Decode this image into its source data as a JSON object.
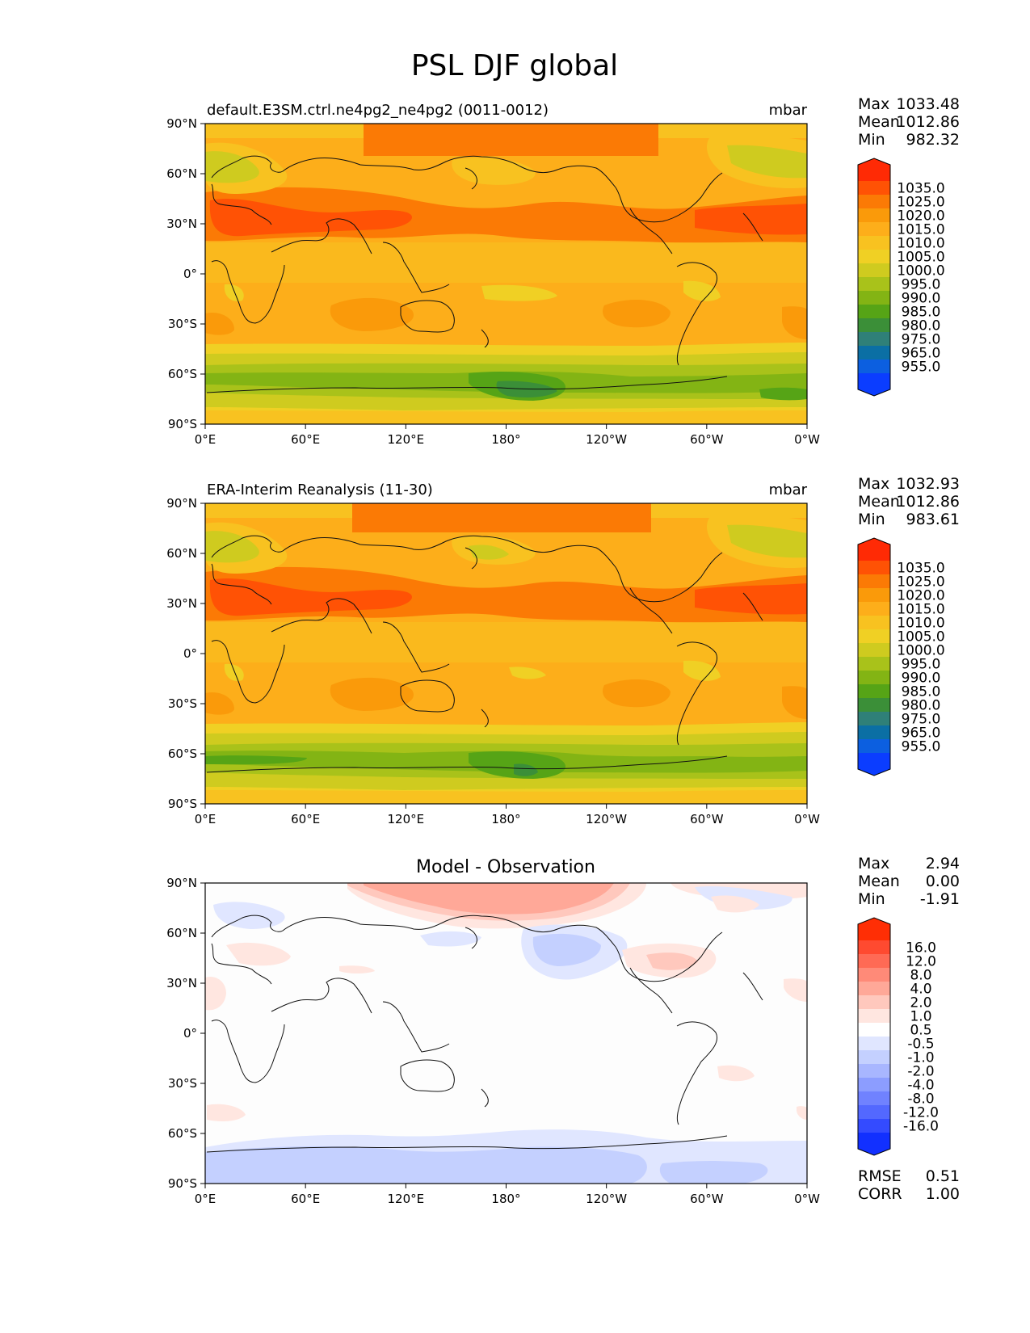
{
  "figure": {
    "title": "PSL DJF global",
    "panels": [
      {
        "key": "test",
        "title_left": "default.E3SM.ctrl.ne4pg2_ne4pg2 (0011-0012)",
        "title_center": "",
        "units": "mbar",
        "stats": [
          {
            "label": "Max",
            "value": "1033.48"
          },
          {
            "label": "Mean",
            "value": "1012.86"
          },
          {
            "label": "Min",
            "value": "982.32"
          }
        ],
        "extra_stats": []
      },
      {
        "key": "ref",
        "title_left": "ERA-Interim Reanalysis (11-30)",
        "title_center": "",
        "units": "mbar",
        "stats": [
          {
            "label": "Max",
            "value": "1032.93"
          },
          {
            "label": "Mean",
            "value": "1012.86"
          },
          {
            "label": "Min",
            "value": "983.61"
          }
        ],
        "extra_stats": []
      },
      {
        "key": "diff",
        "title_left": "",
        "title_center": "Model - Observation",
        "units": "",
        "stats": [
          {
            "label": "Max",
            "value": "2.94"
          },
          {
            "label": "Mean",
            "value": "0.00"
          },
          {
            "label": "Min",
            "value": "-1.91"
          }
        ],
        "extra_stats": [
          {
            "label": "RMSE",
            "value": "0.51"
          },
          {
            "label": "CORR",
            "value": "1.00"
          }
        ]
      }
    ],
    "lat_ticks": [
      "90°N",
      "60°N",
      "30°N",
      "0°",
      "30°S",
      "60°S",
      "90°S"
    ],
    "lon_ticks": [
      "0°E",
      "60°E",
      "120°E",
      "180°",
      "120°W",
      "60°W",
      "0°W"
    ],
    "colorbars": {
      "abs": {
        "labels": [
          "1035.0",
          "1025.0",
          "1020.0",
          "1015.0",
          "1010.0",
          "1005.0",
          "1000.0",
          "995.0",
          "990.0",
          "985.0",
          "980.0",
          "975.0",
          "965.0",
          "955.0"
        ],
        "colors": [
          "#ff2a05",
          "#ff5205",
          "#fb7a05",
          "#fa9a0a",
          "#fdae1a",
          "#f8c220",
          "#f0d024",
          "#cfcb1f",
          "#a9c21a",
          "#83b414",
          "#56a416",
          "#3b8f38",
          "#2f8078",
          "#0b6fa4",
          "#0c5fe0",
          "#0b3dff"
        ]
      },
      "diff": {
        "labels": [
          "16.0",
          "12.0",
          "8.0",
          "4.0",
          "2.0",
          "1.0",
          "0.5",
          "-0.5",
          "-1.0",
          "-2.0",
          "-4.0",
          "-8.0",
          "-12.0",
          "-16.0"
        ],
        "colors": [
          "#ff2e05",
          "#ff4a30",
          "#ff6a55",
          "#ff8a78",
          "#ffa898",
          "#ffc8bd",
          "#ffe6e0",
          "#ffffff",
          "#e0e6ff",
          "#c4d0ff",
          "#a8b6ff",
          "#8c9dff",
          "#7082ff",
          "#5368ff",
          "#344bff",
          "#1230ff"
        ]
      }
    }
  }
}
